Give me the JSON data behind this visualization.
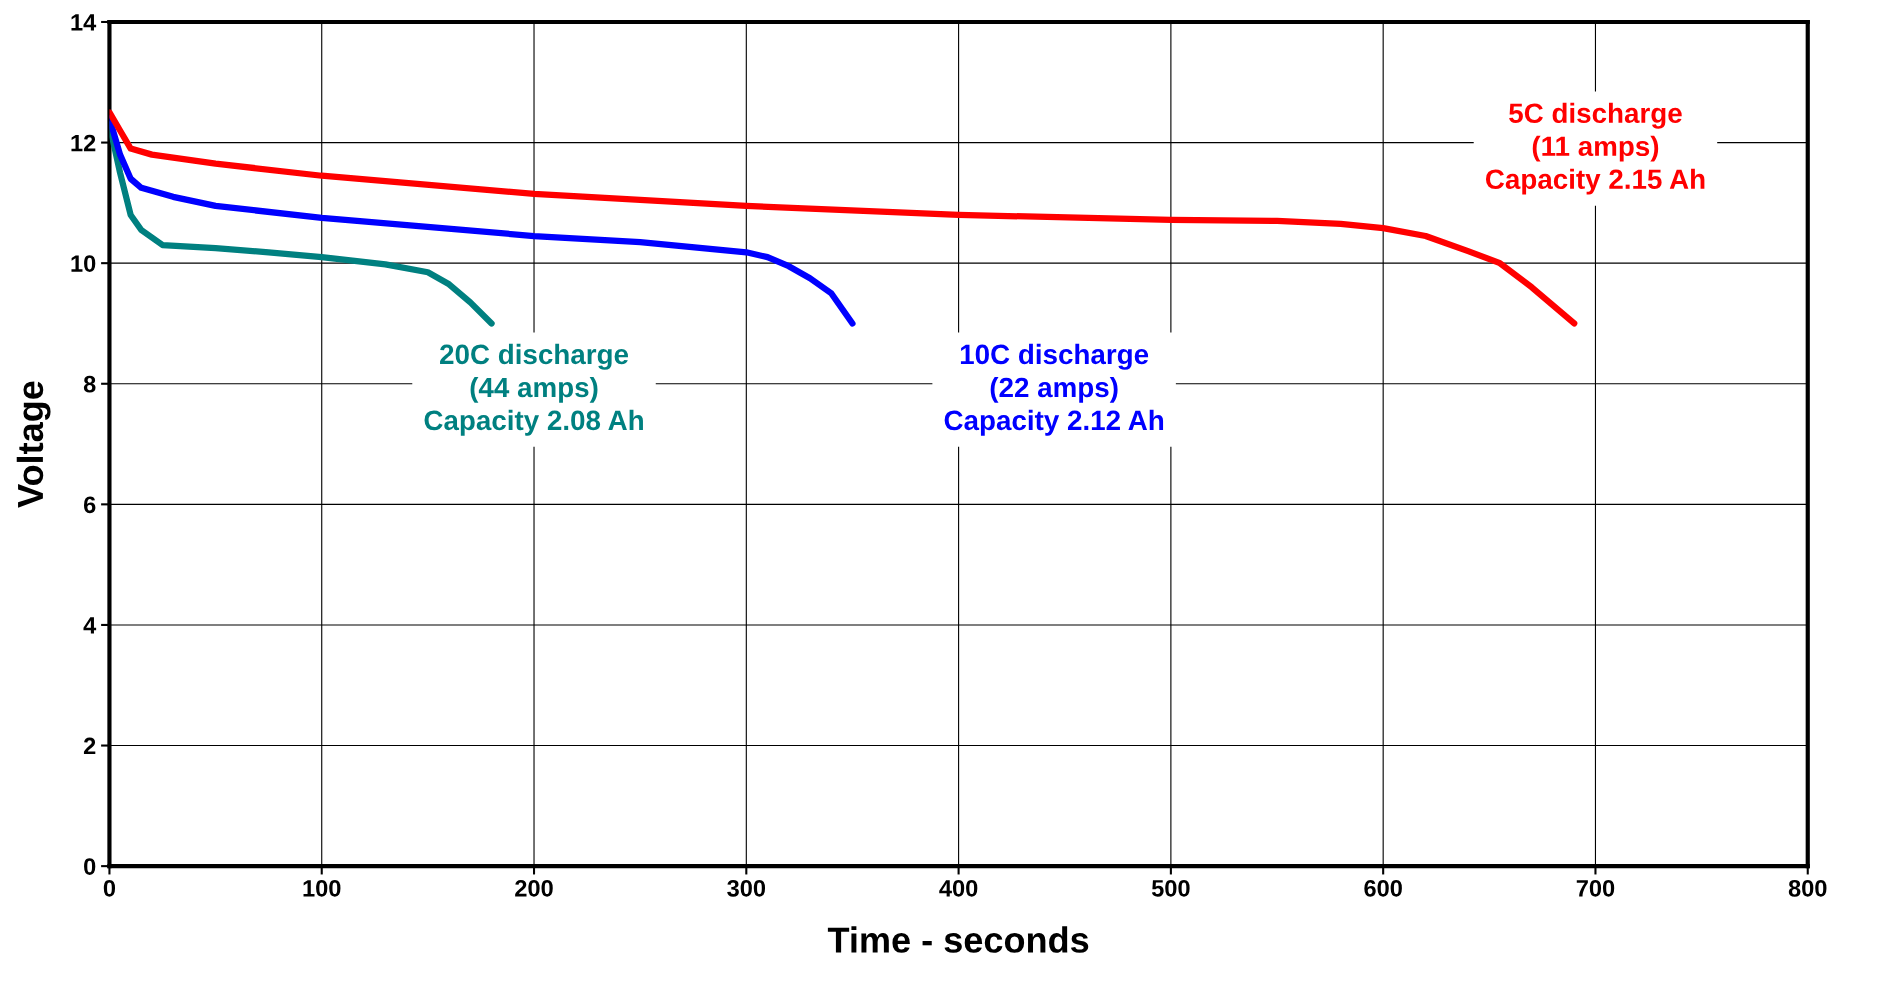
{
  "chart_data": {
    "type": "line",
    "xlabel": "Time - seconds",
    "ylabel": "Voltage",
    "xlim": [
      0,
      800
    ],
    "xticks": [
      0,
      100,
      200,
      300,
      400,
      500,
      600,
      700,
      800
    ],
    "ylim": [
      0,
      14
    ],
    "yticks": [
      0,
      2,
      4,
      6,
      8,
      10,
      12,
      14
    ],
    "grid": true,
    "legend": false,
    "marker": "none",
    "line_style": "solid",
    "series": [
      {
        "name": "20C discharge\n(44 amps)\nCapacity 2.08 Ah",
        "color": "#008080",
        "x": [
          0,
          5,
          10,
          15,
          25,
          50,
          75,
          100,
          130,
          150,
          160,
          170,
          180
        ],
        "values": [
          12.3,
          11.5,
          10.8,
          10.55,
          10.3,
          10.25,
          10.18,
          10.1,
          9.98,
          9.85,
          9.65,
          9.35,
          9.0
        ]
      },
      {
        "name": "10C discharge\n(22 amps)\nCapacity 2.12 Ah",
        "color": "#0000ff",
        "x": [
          0,
          5,
          10,
          15,
          30,
          50,
          100,
          200,
          250,
          300,
          310,
          320,
          330,
          340,
          350
        ],
        "values": [
          12.4,
          11.8,
          11.4,
          11.25,
          11.1,
          10.95,
          10.75,
          10.45,
          10.35,
          10.18,
          10.1,
          9.95,
          9.75,
          9.5,
          9.0
        ]
      },
      {
        "name": "5C discharge\n(11 amps)\nCapacity 2.15 Ah",
        "color": "#ff0000",
        "x": [
          0,
          5,
          10,
          20,
          50,
          100,
          200,
          300,
          400,
          500,
          550,
          580,
          600,
          620,
          640,
          655,
          670,
          690
        ],
        "values": [
          12.5,
          12.2,
          11.9,
          11.8,
          11.65,
          11.45,
          11.15,
          10.95,
          10.8,
          10.72,
          10.7,
          10.65,
          10.58,
          10.45,
          10.2,
          10.0,
          9.6,
          9.0
        ]
      }
    ]
  }
}
